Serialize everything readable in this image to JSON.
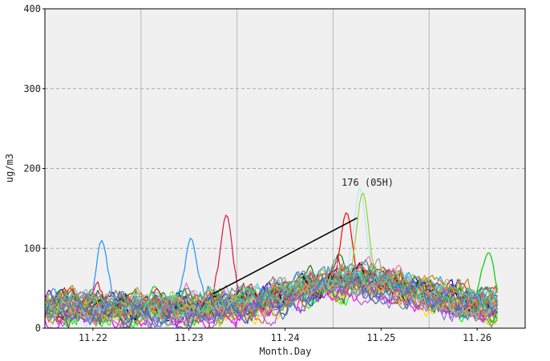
{
  "chart_data": {
    "type": "line",
    "title": "",
    "xlabel": "Month.Day",
    "ylabel": "ug/m3",
    "xlim": [
      11.215,
      11.265
    ],
    "ylim": [
      0,
      400
    ],
    "x_ticks": [
      "11.22",
      "11.23",
      "11.24",
      "11.25",
      "11.26"
    ],
    "x_tick_values": [
      11.22,
      11.23,
      11.24,
      11.25,
      11.26
    ],
    "x_day_boundaries": [
      11.225,
      11.235,
      11.245,
      11.255
    ],
    "y_ticks": [
      0,
      100,
      200,
      300,
      400
    ],
    "grid": {
      "horizontal": "dashed",
      "vertical": "solid-at-day-boundaries"
    },
    "limit_line": {
      "value": 400,
      "color": "#dd0000"
    },
    "background": "#f0f0f0",
    "annotation": {
      "text": "176 (05H)",
      "x": 11.2478,
      "y": 176
    },
    "trend_line": {
      "color": "#000000",
      "points": [
        [
          11.2325,
          43
        ],
        [
          11.2475,
          138
        ]
      ]
    },
    "series_count": 40,
    "series_colors": [
      "#00008b",
      "#0000ff",
      "#1e90ff",
      "#87ceeb",
      "#aeeeee",
      "#008000",
      "#00cc00",
      "#00ff00",
      "#7cfc00",
      "#90ee90",
      "#ff0000",
      "#dc143c",
      "#ff8c00",
      "#ffa500",
      "#ffd700",
      "#800080",
      "#ba55d3",
      "#ff00ff",
      "#ff69b4",
      "#000000",
      "#555555",
      "#808080",
      "#a0a0a0",
      "#8b4513",
      "#d2691e",
      "#4682b4",
      "#2e8b57",
      "#9acd32",
      "#6a5acd",
      "#b8860b",
      "#5f9ea0",
      "#66cdaa",
      "#cd5c5c",
      "#ff7f50",
      "#40e0d0",
      "#9370db",
      "#3cb371",
      "#bdb76b",
      "#708090",
      "#4169e1"
    ],
    "series_peaks": [
      {
        "color": "#aeeeee",
        "x": 11.2478,
        "y": 176
      },
      {
        "color": "#1e90ff",
        "x": 11.2209,
        "y": 110
      },
      {
        "color": "#1e90ff",
        "x": 11.2302,
        "y": 113
      },
      {
        "color": "#dc143c",
        "x": 11.2339,
        "y": 142
      },
      {
        "color": "#ff0000",
        "x": 11.2464,
        "y": 145
      },
      {
        "color": "#9acd32",
        "x": 11.2481,
        "y": 170
      },
      {
        "color": "#00cc00",
        "x": 11.2612,
        "y": 95
      }
    ]
  }
}
